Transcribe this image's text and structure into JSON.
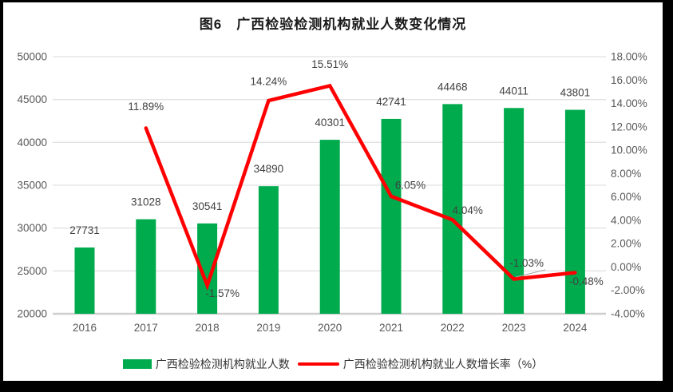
{
  "frame": {
    "border_color": "#000000",
    "canvas_background": "#FFFFFF"
  },
  "chart_data": {
    "type": "bar+line combo",
    "title": "图6　广西检验检测机构就业人数变化情况",
    "categories": [
      "2016",
      "2017",
      "2018",
      "2019",
      "2020",
      "2021",
      "2022",
      "2023",
      "2024"
    ],
    "series": [
      {
        "name": "广西检验检测机构就业人数",
        "type": "bar",
        "axis": "left",
        "color": "#00AB4E",
        "values": [
          27731,
          31028,
          30541,
          34890,
          40301,
          42741,
          44468,
          44011,
          43801
        ],
        "point_labels": [
          "27731",
          "31028",
          "30541",
          "34890",
          "40301",
          "42741",
          "44468",
          "44011",
          "43801"
        ]
      },
      {
        "name": "广西检验检测机构就业人数增长率（%）",
        "type": "line",
        "axis": "right",
        "color": "#FE0000",
        "values": [
          null,
          11.89,
          -1.57,
          14.24,
          15.51,
          6.05,
          4.04,
          -1.03,
          -0.48
        ],
        "point_labels": [
          null,
          "11.89%",
          "-1.57%",
          "14.24%",
          "15.51%",
          "6.05%",
          "4.04%",
          "-1.03%",
          "-0.48%"
        ]
      }
    ],
    "left_axis": {
      "min": 20000,
      "max": 50000,
      "step": 5000,
      "tick_labels": [
        "50000",
        "45000",
        "40000",
        "35000",
        "30000",
        "25000",
        "20000"
      ]
    },
    "right_axis": {
      "min": -4,
      "max": 18,
      "step": 2,
      "tick_labels": [
        "18.00%",
        "16.00%",
        "14.00%",
        "12.00%",
        "10.00%",
        "8.00%",
        "6.00%",
        "4.00%",
        "2.00%",
        "0.00%",
        "-2.00%",
        "-4.00%"
      ]
    },
    "grid": "horizontal gridlines at left-axis ticks",
    "legend_position": "bottom"
  },
  "legend": {
    "items": [
      {
        "label": "广西检验检测机构就业人数",
        "swatch": "green-rect"
      },
      {
        "label": "广西检验检测机构就业人数增长率（%）",
        "swatch": "red-line"
      }
    ]
  },
  "colors": {
    "bar_green": "#00AB4E",
    "line_red": "#FE0000",
    "axis_text": "#595959",
    "data_label": "#404040",
    "gridline": "#E2E2E2",
    "axis_line": "#CFCFCF",
    "leader_line": "#A6A6A6",
    "title_text": "#1A1A1A"
  }
}
